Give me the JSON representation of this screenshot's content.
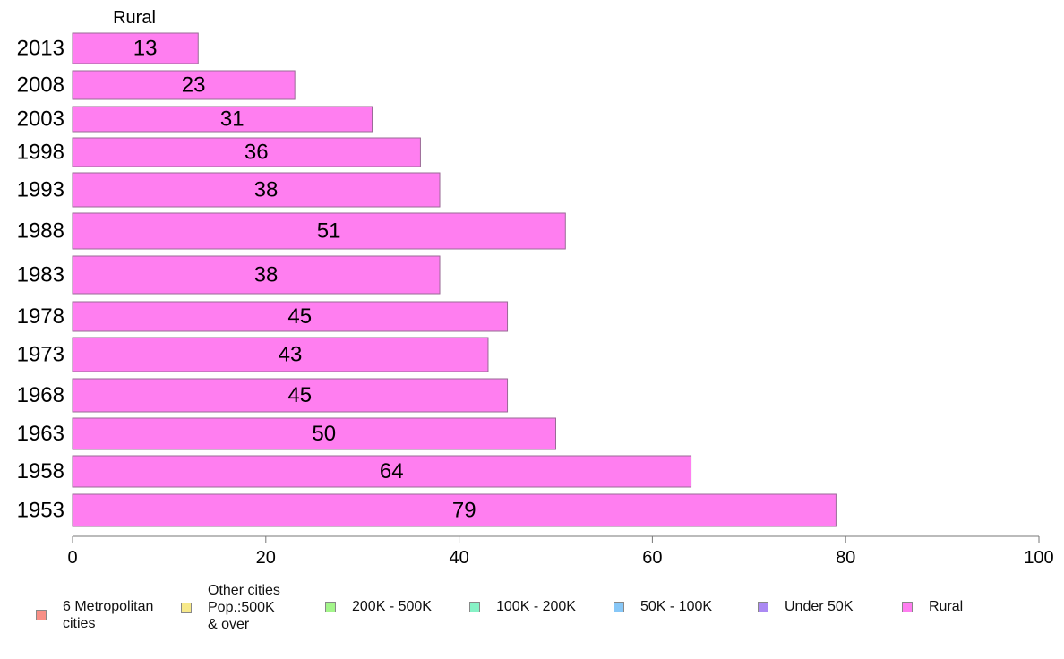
{
  "chart_data": {
    "type": "bar",
    "orientation": "horizontal",
    "title": "Rural",
    "categories": [
      "2013",
      "2008",
      "2003",
      "1998",
      "1993",
      "1988",
      "1983",
      "1978",
      "1973",
      "1968",
      "1963",
      "1958",
      "1953"
    ],
    "values": [
      13,
      23,
      31,
      36,
      38,
      51,
      38,
      45,
      43,
      45,
      50,
      64,
      79
    ],
    "value_labels": [
      "13",
      "23",
      "31",
      "36",
      "38",
      "51",
      "38",
      "45",
      "43",
      "45",
      "50",
      "64",
      "79"
    ],
    "xlim": [
      0,
      100
    ],
    "xticks": [
      "0",
      "20",
      "40",
      "60",
      "80",
      "100"
    ],
    "grid": false,
    "legend_placement": "bottom",
    "bar_color": "#ff7ef0",
    "legend": [
      {
        "label": "6 Metropolitan\n cities",
        "color": "#f88f86"
      },
      {
        "label": "Other cities\nPop.:500K\n & over",
        "color": "#f7e98a"
      },
      {
        "label": "200K - 500K",
        "color": "#a3f58a"
      },
      {
        "label": "100K - 200K",
        "color": "#87f2c6"
      },
      {
        "label": "50K - 100K",
        "color": "#87c7f7"
      },
      {
        "label": "Under 50K",
        "color": "#ab89f3"
      },
      {
        "label": "Rural",
        "color": "#ff7ef0"
      }
    ]
  }
}
